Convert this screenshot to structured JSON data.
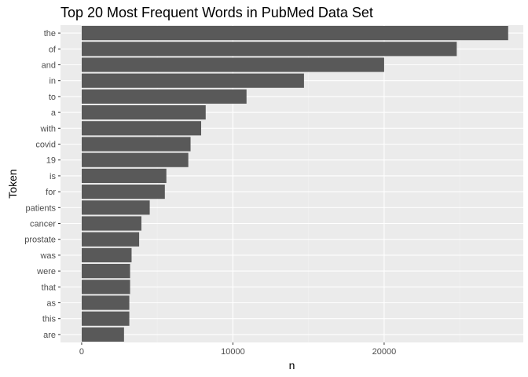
{
  "chart_data": {
    "type": "bar",
    "orientation": "horizontal",
    "title": "Top 20 Most Frequent Words in PubMed Data Set",
    "xlabel": "n",
    "ylabel": "Token",
    "xlim": [
      -1400,
      29200
    ],
    "xticks": [
      0,
      10000,
      20000
    ],
    "xtick_labels": [
      "0",
      "10000",
      "20000"
    ],
    "categories": [
      "the",
      "of",
      "and",
      "in",
      "to",
      "a",
      "with",
      "covid",
      "19",
      "is",
      "for",
      "patients",
      "cancer",
      "prostate",
      "was",
      "were",
      "that",
      "as",
      "this",
      "are"
    ],
    "values": [
      28200,
      24800,
      20000,
      14700,
      10900,
      8200,
      7900,
      7200,
      7050,
      5600,
      5500,
      4500,
      3950,
      3800,
      3300,
      3200,
      3200,
      3150,
      3150,
      2800
    ],
    "grid": true,
    "legend": "none",
    "colors": {
      "bar": "#595959",
      "panel": "#ebebeb",
      "grid_major": "#ffffff",
      "grid_minor": "#f2f2f2",
      "tick_label": "#4d4d4d",
      "axis_tick": "#333333"
    }
  }
}
